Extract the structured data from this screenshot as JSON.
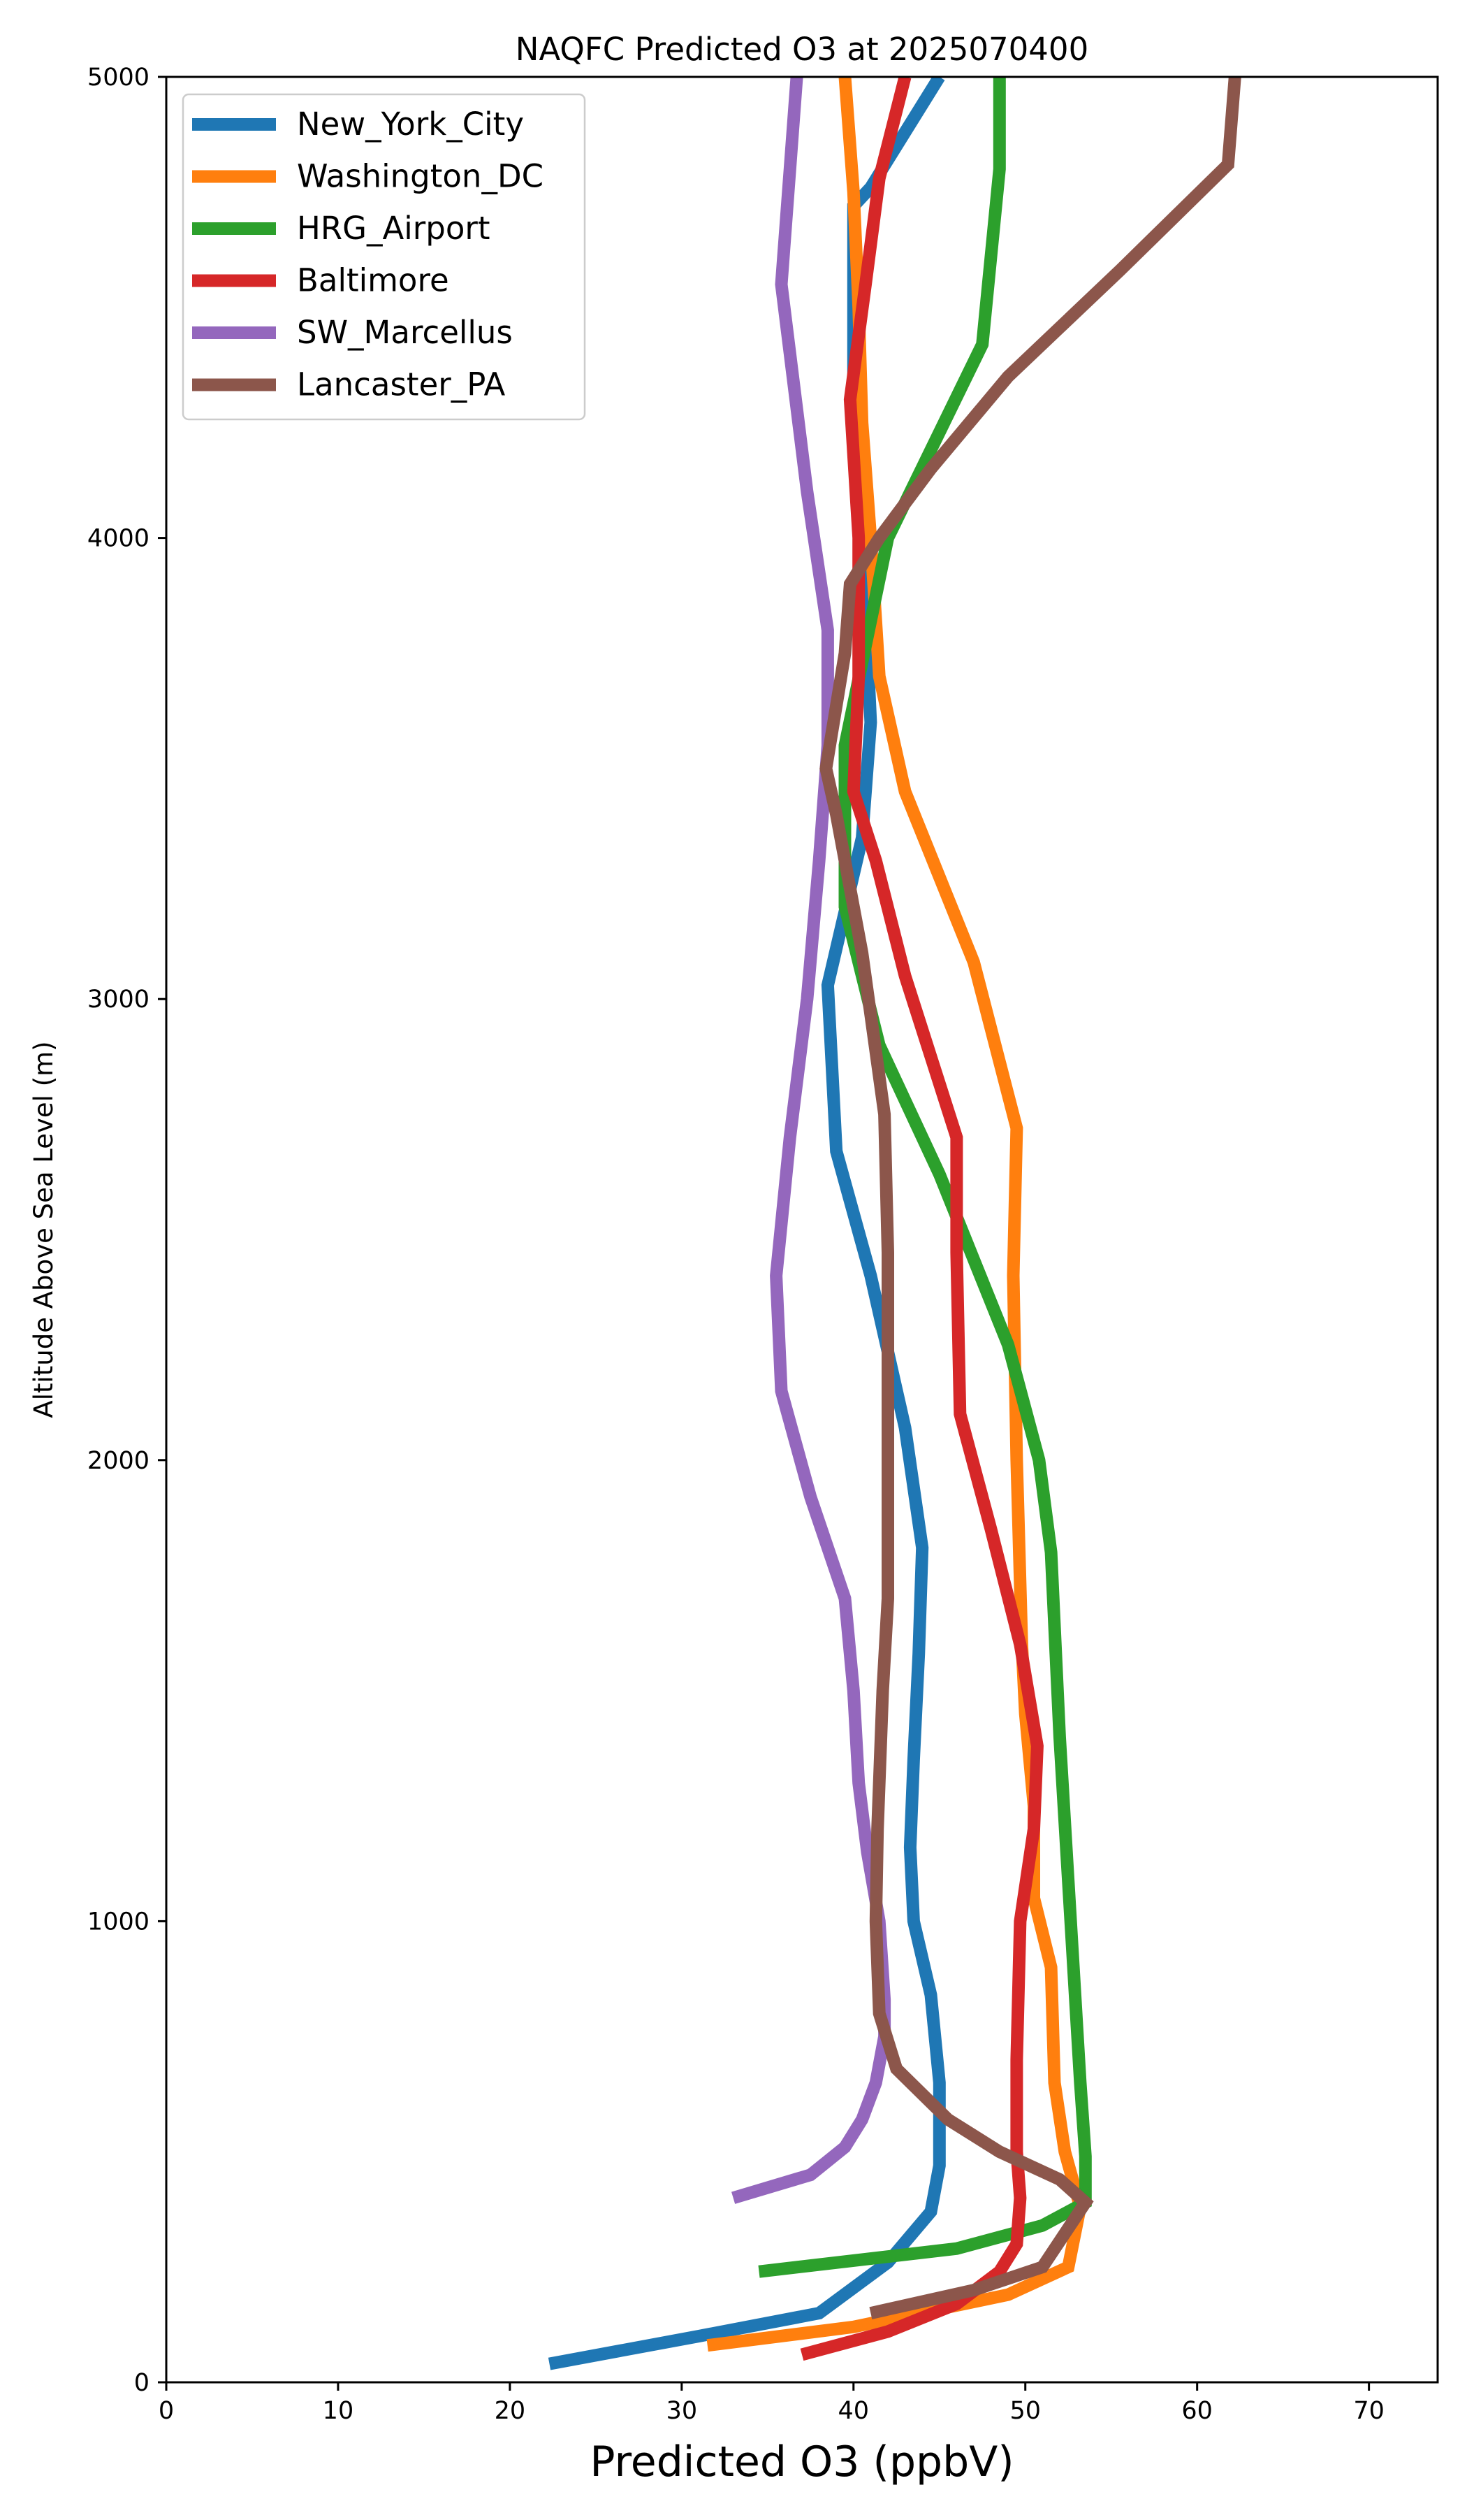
{
  "chart_data": {
    "type": "line",
    "title": "NAQFC Predicted O3 at 2025070400",
    "xlabel": "Predicted O3 (ppbV)",
    "ylabel": "Altitude Above Sea Level (m)",
    "xlim": [
      0,
      74
    ],
    "ylim": [
      0,
      5000
    ],
    "xticks": [
      0,
      10,
      20,
      30,
      40,
      50,
      60,
      70
    ],
    "yticks": [
      0,
      1000,
      2000,
      3000,
      4000,
      5000
    ],
    "grid": false,
    "legend_position": "top-left",
    "series": [
      {
        "name": "New_York_City",
        "color": "#1f77b4",
        "points": [
          [
            22.3,
            40
          ],
          [
            31,
            100
          ],
          [
            38,
            150
          ],
          [
            42,
            260
          ],
          [
            44.5,
            370
          ],
          [
            45,
            470
          ],
          [
            45,
            650
          ],
          [
            44.5,
            840
          ],
          [
            43.5,
            1000
          ],
          [
            43.3,
            1160
          ],
          [
            43.5,
            1350
          ],
          [
            43.8,
            1580
          ],
          [
            44,
            1810
          ],
          [
            43,
            2070
          ],
          [
            41,
            2400
          ],
          [
            39,
            2670
          ],
          [
            38.5,
            3030
          ],
          [
            40.5,
            3350
          ],
          [
            41,
            3600
          ],
          [
            40.5,
            4000
          ],
          [
            40,
            4250
          ],
          [
            40,
            4720
          ],
          [
            41,
            4760
          ],
          [
            45,
            5000
          ]
        ]
      },
      {
        "name": "Washington_DC",
        "color": "#ff7f0e",
        "points": [
          [
            31.5,
            80
          ],
          [
            40,
            120
          ],
          [
            49,
            190
          ],
          [
            52.5,
            250
          ],
          [
            53.2,
            380
          ],
          [
            52.3,
            500
          ],
          [
            51.7,
            650
          ],
          [
            51.5,
            900
          ],
          [
            50.5,
            1050
          ],
          [
            50.5,
            1250
          ],
          [
            50,
            1450
          ],
          [
            49.8,
            1600
          ],
          [
            49.5,
            2000
          ],
          [
            49.3,
            2400
          ],
          [
            49.5,
            2720
          ],
          [
            47,
            3080
          ],
          [
            43,
            3450
          ],
          [
            41.5,
            3700
          ],
          [
            41,
            4000
          ],
          [
            40.5,
            4250
          ],
          [
            40.3,
            4500
          ],
          [
            40,
            4750
          ],
          [
            39.5,
            5000
          ]
        ]
      },
      {
        "name": "HRG_Airport",
        "color": "#2ca02c",
        "points": [
          [
            34.5,
            240
          ],
          [
            46,
            290
          ],
          [
            51,
            340
          ],
          [
            53.5,
            390
          ],
          [
            53.5,
            490
          ],
          [
            53.2,
            650
          ],
          [
            52.8,
            900
          ],
          [
            52,
            1400
          ],
          [
            51.5,
            1800
          ],
          [
            50.8,
            2000
          ],
          [
            49,
            2250
          ],
          [
            45,
            2620
          ],
          [
            41.5,
            2900
          ],
          [
            39.5,
            3200
          ],
          [
            39.5,
            3550
          ],
          [
            42,
            4000
          ],
          [
            47.5,
            4420
          ],
          [
            48.5,
            4800
          ],
          [
            48.5,
            5000
          ]
        ]
      },
      {
        "name": "Baltimore",
        "color": "#d62728",
        "points": [
          [
            37,
            60
          ],
          [
            42,
            110
          ],
          [
            46,
            170
          ],
          [
            48.5,
            240
          ],
          [
            49.5,
            300
          ],
          [
            49.7,
            400
          ],
          [
            49.5,
            500
          ],
          [
            49.5,
            700
          ],
          [
            49.7,
            1000
          ],
          [
            50.5,
            1200
          ],
          [
            50.7,
            1380
          ],
          [
            49.7,
            1600
          ],
          [
            48,
            1850
          ],
          [
            46.2,
            2100
          ],
          [
            46,
            2450
          ],
          [
            46,
            2700
          ],
          [
            43,
            3050
          ],
          [
            41.3,
            3300
          ],
          [
            40,
            3450
          ],
          [
            40.3,
            3700
          ],
          [
            40.3,
            4000
          ],
          [
            39.8,
            4300
          ],
          [
            40.7,
            4550
          ],
          [
            41.5,
            4780
          ],
          [
            43,
            5000
          ]
        ]
      },
      {
        "name": "SW_Marcellus",
        "color": "#9467bd",
        "points": [
          [
            33,
            400
          ],
          [
            37.5,
            450
          ],
          [
            39.5,
            510
          ],
          [
            40.5,
            570
          ],
          [
            41.3,
            650
          ],
          [
            41.8,
            750
          ],
          [
            41.8,
            830
          ],
          [
            41.5,
            1000
          ],
          [
            40.8,
            1150
          ],
          [
            40.3,
            1300
          ],
          [
            40,
            1500
          ],
          [
            39.5,
            1700
          ],
          [
            37.5,
            1920
          ],
          [
            35.8,
            2150
          ],
          [
            35.5,
            2400
          ],
          [
            36.3,
            2700
          ],
          [
            37.3,
            3000
          ],
          [
            38,
            3300
          ],
          [
            38.5,
            3550
          ],
          [
            38.5,
            3800
          ],
          [
            37.3,
            4100
          ],
          [
            35.8,
            4550
          ],
          [
            36.3,
            4800
          ],
          [
            36.7,
            5000
          ]
        ]
      },
      {
        "name": "Lancaster_PA",
        "color": "#8c564b",
        "points": [
          [
            41,
            150
          ],
          [
            47,
            200
          ],
          [
            51,
            250
          ],
          [
            53.5,
            390
          ],
          [
            52,
            440
          ],
          [
            48.5,
            500
          ],
          [
            45.5,
            570
          ],
          [
            42.5,
            680
          ],
          [
            41.5,
            800
          ],
          [
            41.3,
            1000
          ],
          [
            41.4,
            1200
          ],
          [
            41.7,
            1500
          ],
          [
            42,
            1700
          ],
          [
            42,
            1950
          ],
          [
            42,
            2250
          ],
          [
            42,
            2450
          ],
          [
            41.8,
            2750
          ],
          [
            40.5,
            3100
          ],
          [
            39,
            3400
          ],
          [
            38.4,
            3500
          ],
          [
            39.5,
            3750
          ],
          [
            39.8,
            3900
          ],
          [
            41.5,
            4000
          ],
          [
            44.5,
            4150
          ],
          [
            49,
            4350
          ],
          [
            55.5,
            4580
          ],
          [
            61.8,
            4810
          ],
          [
            62.2,
            5000
          ]
        ]
      }
    ]
  }
}
